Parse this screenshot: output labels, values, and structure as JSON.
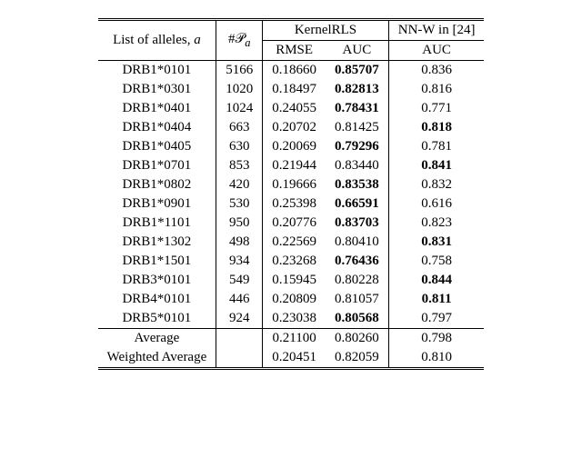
{
  "header": {
    "col1": "List of alleles, ",
    "col1_ital": "a",
    "col2_prefix": "#",
    "col2_sym": "𝒫",
    "col2_sub_ital": "a",
    "krls": "KernelRLS",
    "rmse": "RMSE",
    "auc": "AUC",
    "nnw": "NN-W in [24]",
    "nnw_auc": "AUC"
  },
  "rows": [
    {
      "allele": "DRB1*0101",
      "n": "5166",
      "rmse": "0.18660",
      "auc": "0.85707",
      "auc_bold": true,
      "nn": "0.836",
      "nn_bold": false
    },
    {
      "allele": "DRB1*0301",
      "n": "1020",
      "rmse": "0.18497",
      "auc": "0.82813",
      "auc_bold": true,
      "nn": "0.816",
      "nn_bold": false
    },
    {
      "allele": "DRB1*0401",
      "n": "1024",
      "rmse": "0.24055",
      "auc": "0.78431",
      "auc_bold": true,
      "nn": "0.771",
      "nn_bold": false
    },
    {
      "allele": "DRB1*0404",
      "n": "663",
      "rmse": "0.20702",
      "auc": "0.81425",
      "auc_bold": false,
      "nn": "0.818",
      "nn_bold": true
    },
    {
      "allele": "DRB1*0405",
      "n": "630",
      "rmse": "0.20069",
      "auc": "0.79296",
      "auc_bold": true,
      "nn": "0.781",
      "nn_bold": false
    },
    {
      "allele": "DRB1*0701",
      "n": "853",
      "rmse": "0.21944",
      "auc": "0.83440",
      "auc_bold": false,
      "nn": "0.841",
      "nn_bold": true
    },
    {
      "allele": "DRB1*0802",
      "n": "420",
      "rmse": "0.19666",
      "auc": "0.83538",
      "auc_bold": true,
      "nn": "0.832",
      "nn_bold": false
    },
    {
      "allele": "DRB1*0901",
      "n": "530",
      "rmse": "0.25398",
      "auc": "0.66591",
      "auc_bold": true,
      "nn": "0.616",
      "nn_bold": false
    },
    {
      "allele": "DRB1*1101",
      "n": "950",
      "rmse": "0.20776",
      "auc": "0.83703",
      "auc_bold": true,
      "nn": "0.823",
      "nn_bold": false
    },
    {
      "allele": "DRB1*1302",
      "n": "498",
      "rmse": "0.22569",
      "auc": "0.80410",
      "auc_bold": false,
      "nn": "0.831",
      "nn_bold": true
    },
    {
      "allele": "DRB1*1501",
      "n": "934",
      "rmse": "0.23268",
      "auc": "0.76436",
      "auc_bold": true,
      "nn": "0.758",
      "nn_bold": false
    },
    {
      "allele": "DRB3*0101",
      "n": "549",
      "rmse": "0.15945",
      "auc": "0.80228",
      "auc_bold": false,
      "nn": "0.844",
      "nn_bold": true
    },
    {
      "allele": "DRB4*0101",
      "n": "446",
      "rmse": "0.20809",
      "auc": "0.81057",
      "auc_bold": false,
      "nn": "0.811",
      "nn_bold": true
    },
    {
      "allele": "DRB5*0101",
      "n": "924",
      "rmse": "0.23038",
      "auc": "0.80568",
      "auc_bold": true,
      "nn": "0.797",
      "nn_bold": false
    }
  ],
  "footer": {
    "avg_label": "Average",
    "avg_rmse": "0.21100",
    "avg_auc": "0.80260",
    "avg_nn": "0.798",
    "wavg_label": "Weighted Average",
    "wavg_rmse": "0.20451",
    "wavg_auc": "0.82059",
    "wavg_nn": "0.810"
  }
}
